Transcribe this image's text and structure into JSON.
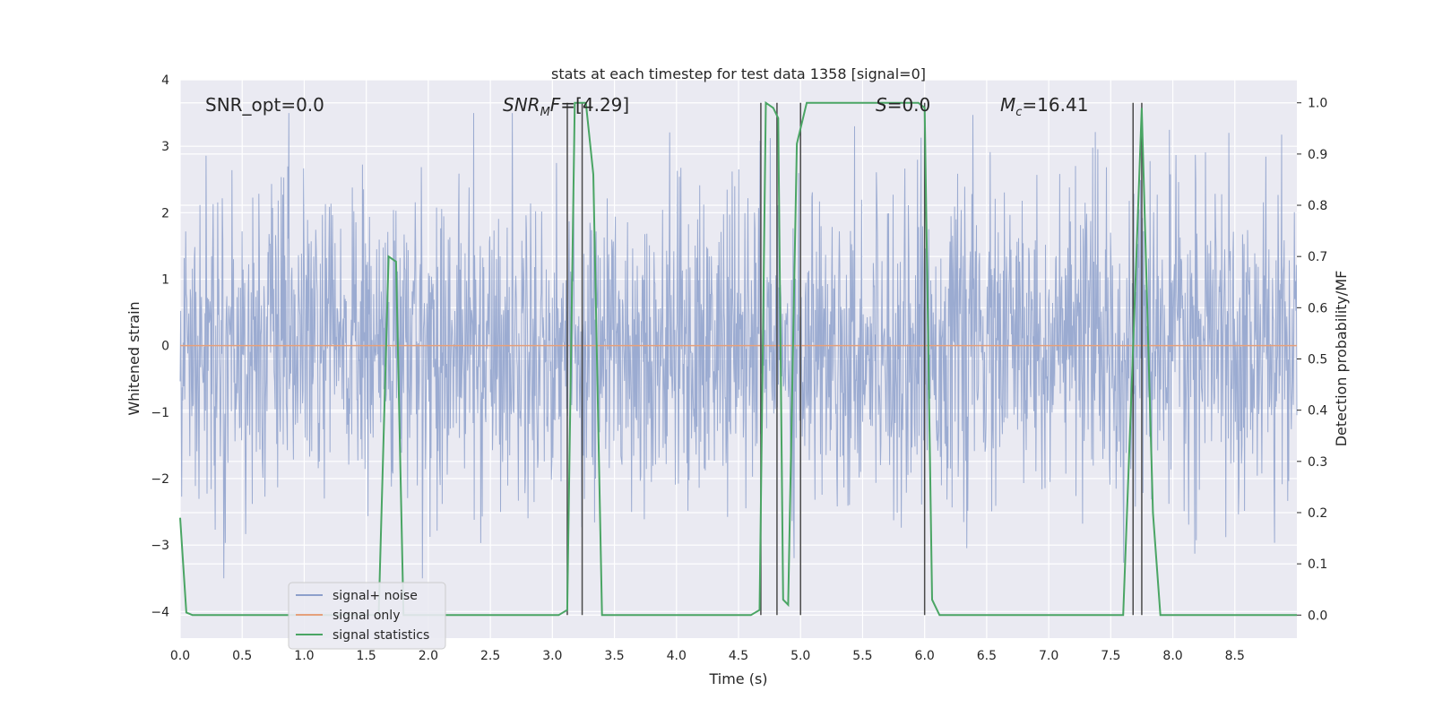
{
  "chart_data": {
    "type": "line",
    "title": "stats at each timestep for test data 1358 [signal=0]",
    "xlabel": "Time (s)",
    "ylabel": "Whitened strain",
    "y2label": "Detection probability/MF",
    "xlim": [
      0.0,
      9.0
    ],
    "ylim": [
      -4.4,
      4.0
    ],
    "y2lim": [
      -0.045,
      1.045
    ],
    "x_ticks": [
      "0.0",
      "0.5",
      "1.0",
      "1.5",
      "2.0",
      "2.5",
      "3.0",
      "3.5",
      "4.0",
      "4.5",
      "5.0",
      "5.5",
      "6.0",
      "6.5",
      "7.0",
      "7.5",
      "8.0",
      "8.5"
    ],
    "y_ticks": [
      "4",
      "3",
      "2",
      "1",
      "0",
      "−1",
      "−2",
      "−3",
      "−4"
    ],
    "y2_ticks": [
      "1.0",
      "0.9",
      "0.8",
      "0.7",
      "0.6",
      "0.5",
      "0.4",
      "0.3",
      "0.2",
      "0.1",
      "0.0"
    ],
    "grid": true,
    "legend_position": "lower-left",
    "annotations": {
      "snr_opt": "SNR_opt=0.0",
      "snr_mf_sym": "SNR",
      "snr_mf_sub": "M",
      "snr_mf_sym2": "F",
      "snr_mf_val": "=[4.29]",
      "s_sym": "S",
      "s_val": "=0.0",
      "mc_sym": "M",
      "mc_sub": "c",
      "mc_val": "=16.41"
    },
    "series": [
      {
        "name": "signal+ noise",
        "color": "#8da0cb",
        "description": "whitened strain noise, roughly gaussian between -3.5 and 3.5",
        "amplitude_range": [
          -3.5,
          3.5
        ]
      },
      {
        "name": "signal only",
        "color": "#e5a07b",
        "x": [
          0.0,
          9.0
        ],
        "y": [
          0.0,
          0.0
        ]
      },
      {
        "name": "signal statistics",
        "color": "#4aa564",
        "axis": "right",
        "x": [
          0.0,
          0.05,
          0.1,
          1.6,
          1.68,
          1.74,
          1.8,
          3.05,
          3.12,
          3.18,
          3.27,
          3.33,
          3.4,
          4.6,
          4.67,
          4.72,
          4.78,
          4.82,
          4.86,
          4.9,
          4.97,
          5.05,
          5.95,
          6.0,
          6.06,
          6.12,
          7.6,
          7.66,
          7.75,
          7.84,
          7.9,
          9.0
        ],
        "y": [
          0.19,
          0.005,
          0.0,
          0.0,
          0.7,
          0.69,
          0.0,
          0.0,
          0.01,
          1.0,
          1.0,
          0.86,
          0.0,
          0.0,
          0.01,
          1.0,
          0.99,
          0.97,
          0.03,
          0.02,
          0.92,
          1.0,
          1.0,
          0.99,
          0.03,
          0.0,
          0.0,
          0.39,
          0.99,
          0.2,
          0.0,
          0.0
        ]
      }
    ],
    "vlines": {
      "color": "#4a4a4a",
      "x": [
        3.12,
        3.24,
        4.68,
        4.81,
        5.0,
        6.0,
        7.68,
        7.75
      ]
    },
    "colors": {
      "plot_background": "#eaeaf2",
      "grid": "#ffffff"
    }
  }
}
